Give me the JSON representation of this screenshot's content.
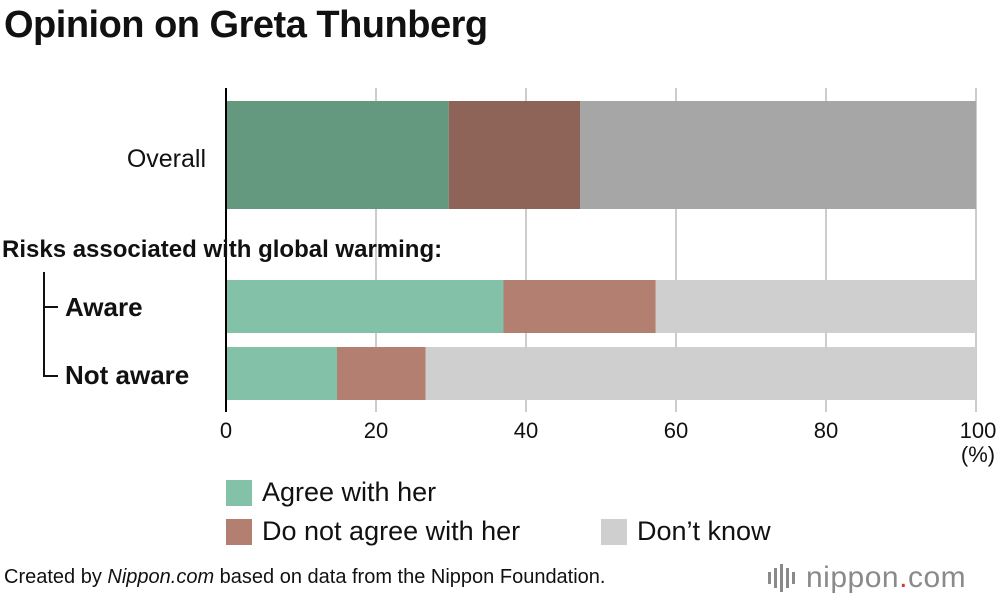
{
  "title": "Opinion on Greta Thunberg",
  "colors": {
    "agree": "#83c1a8",
    "disagree": "#b27f71",
    "dontknow": "#cfcfcf",
    "agree_dark": "#64997f",
    "disagree_dark": "#8e6358",
    "dontknow_dark": "#a6a6a6",
    "grid": "#cccccc",
    "axis": "#000000"
  },
  "chart_data": {
    "type": "bar",
    "orientation": "horizontal",
    "stacked": true,
    "group_label": "Risks associated with global warming:",
    "categories": [
      "Overall",
      "Aware",
      "Not aware"
    ],
    "series": [
      {
        "name": "Agree with her",
        "values": [
          29.7,
          37.0,
          14.8
        ]
      },
      {
        "name": "Do not agree with her",
        "values": [
          17.5,
          20.3,
          11.8
        ]
      },
      {
        "name": "Don’t know",
        "values": [
          52.8,
          42.7,
          73.4
        ]
      }
    ],
    "xlim": [
      0,
      100
    ],
    "xticks": [
      "0",
      "20",
      "40",
      "60",
      "80",
      "100"
    ],
    "xunit": "(%)",
    "grid": true,
    "legend_position": "bottom"
  },
  "footer": {
    "prefix": "Created by ",
    "site": "Nippon.com",
    "suffix": " based on data from the Nippon Foundation."
  },
  "logo": {
    "name": "nippon",
    "dot": ".",
    "tld": "com",
    "icon": "bars-logo-icon"
  }
}
